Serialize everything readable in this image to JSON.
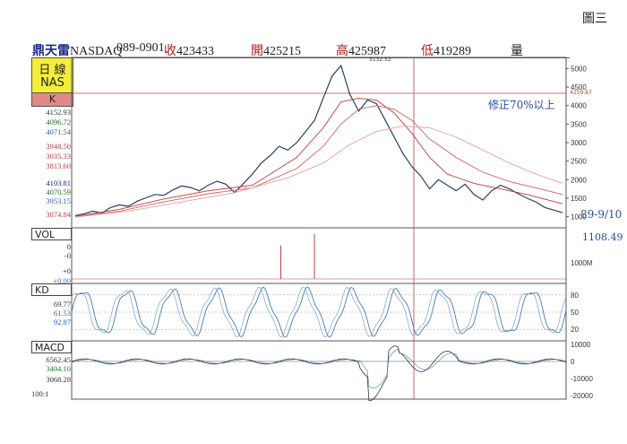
{
  "figure_label": "圖三",
  "header": {
    "brand": "鼎天雷",
    "symbol": "NASDAQ",
    "code": "089-0901",
    "close_label": "收",
    "close_value": "423433",
    "open_label": "開",
    "open_value": "425215",
    "high_label": "高",
    "high_value": "425987",
    "low_label": "低",
    "low_value": "419289",
    "volume_label": "量"
  },
  "panel_label": {
    "line1": "日 線",
    "line2": "NAS",
    "k": "K"
  },
  "legend_values": [
    "4152.93",
    "4096.72",
    "4071.54",
    "3948.50",
    "3035.33",
    "3813.60",
    "4103.81",
    "4070.59",
    "3953.15",
    "3874.84"
  ],
  "panels": {
    "vol": "VOL",
    "kd": "KD",
    "macd": "MACD"
  },
  "vol_left_values": [
    "0",
    "-0",
    "+0",
    "+0.00"
  ],
  "kd_left_values": [
    "69.77",
    "61.53",
    "92.87"
  ],
  "macd_left_values": [
    "6562.45",
    "3404.10",
    "3068.28"
  ],
  "scale_label": "100:1",
  "annotations": {
    "handwritten_note": "修正70%以上",
    "handwritten_range": "89-9/10",
    "handwritten_value": "1108.49",
    "price_marker": "4259.87",
    "peak_label": "5132.52"
  },
  "chart_data": {
    "type": "line",
    "title": "",
    "price_panel": {
      "ylim": [
        700,
        5300
      ],
      "ticks": [
        "5000",
        "4500",
        "4000",
        "3500",
        "3000",
        "2500",
        "2000",
        "1500",
        "1000"
      ],
      "series": [
        {
          "name": "",
          "color": "#2a3e66",
          "x": [
            0,
            10,
            20,
            30,
            40,
            50,
            60,
            70,
            80,
            90,
            100,
            110,
            120,
            130,
            140,
            150,
            160,
            170,
            180,
            190,
            200,
            210,
            220,
            230,
            240,
            250,
            260,
            270,
            280,
            290,
            300,
            310,
            320,
            330,
            340,
            350,
            360,
            370,
            380,
            390,
            400,
            410,
            420,
            430,
            440,
            450,
            460,
            470,
            480,
            490,
            500,
            510,
            520,
            530,
            540,
            550
          ],
          "values": [
            1030,
            1080,
            1150,
            1100,
            1250,
            1320,
            1280,
            1420,
            1510,
            1600,
            1580,
            1720,
            1830,
            1790,
            1700,
            1850,
            1960,
            1880,
            1650,
            1900,
            2150,
            2450,
            2650,
            2900,
            2800,
            3000,
            3300,
            3600,
            4200,
            4800,
            5080,
            4300,
            3850,
            4150,
            4050,
            3600,
            3150,
            2700,
            2350,
            2100,
            1750,
            2000,
            1850,
            1700,
            1880,
            1600,
            1450,
            1700,
            1850,
            1750,
            1620,
            1500,
            1400,
            1250,
            1180,
            1108
          ]
        },
        {
          "name": "",
          "color": "#c03a3a",
          "x": [
            0,
            50,
            100,
            150,
            200,
            250,
            280,
            300,
            320,
            340,
            360,
            380,
            400,
            420,
            450,
            480,
            510,
            550
          ],
          "values": [
            1010,
            1200,
            1480,
            1700,
            1850,
            2600,
            3400,
            4100,
            4200,
            4150,
            3800,
            3250,
            2600,
            2150,
            1900,
            1750,
            1600,
            1350
          ]
        },
        {
          "name": "",
          "color": "#d46060",
          "x": [
            0,
            50,
            100,
            150,
            200,
            250,
            280,
            300,
            320,
            340,
            360,
            380,
            400,
            430,
            460,
            490,
            520,
            550
          ],
          "values": [
            1000,
            1150,
            1400,
            1620,
            1780,
            2300,
            2900,
            3500,
            3900,
            4000,
            3900,
            3600,
            3100,
            2600,
            2200,
            1950,
            1780,
            1600
          ]
        },
        {
          "name": "",
          "color": "#e8a0a0",
          "x": [
            0,
            60,
            120,
            180,
            240,
            280,
            310,
            340,
            370,
            400,
            430,
            460,
            490,
            520,
            550
          ],
          "values": [
            990,
            1150,
            1400,
            1650,
            2050,
            2450,
            2950,
            3300,
            3450,
            3400,
            3150,
            2800,
            2450,
            2150,
            1900
          ]
        }
      ]
    },
    "vol_panel": {
      "ticks": [
        "1000M"
      ],
      "spikes_x": [
        232,
        270
      ],
      "spikes_level": [
        0.75,
        1.0
      ]
    },
    "kd_panel": {
      "ticks": [
        "80",
        "50",
        "20"
      ],
      "ylim": [
        0,
        100
      ]
    },
    "macd_panel": {
      "ticks": [
        "10000",
        "0",
        "-10000",
        "-20000"
      ],
      "ylim": [
        -22000,
        12000
      ]
    }
  }
}
